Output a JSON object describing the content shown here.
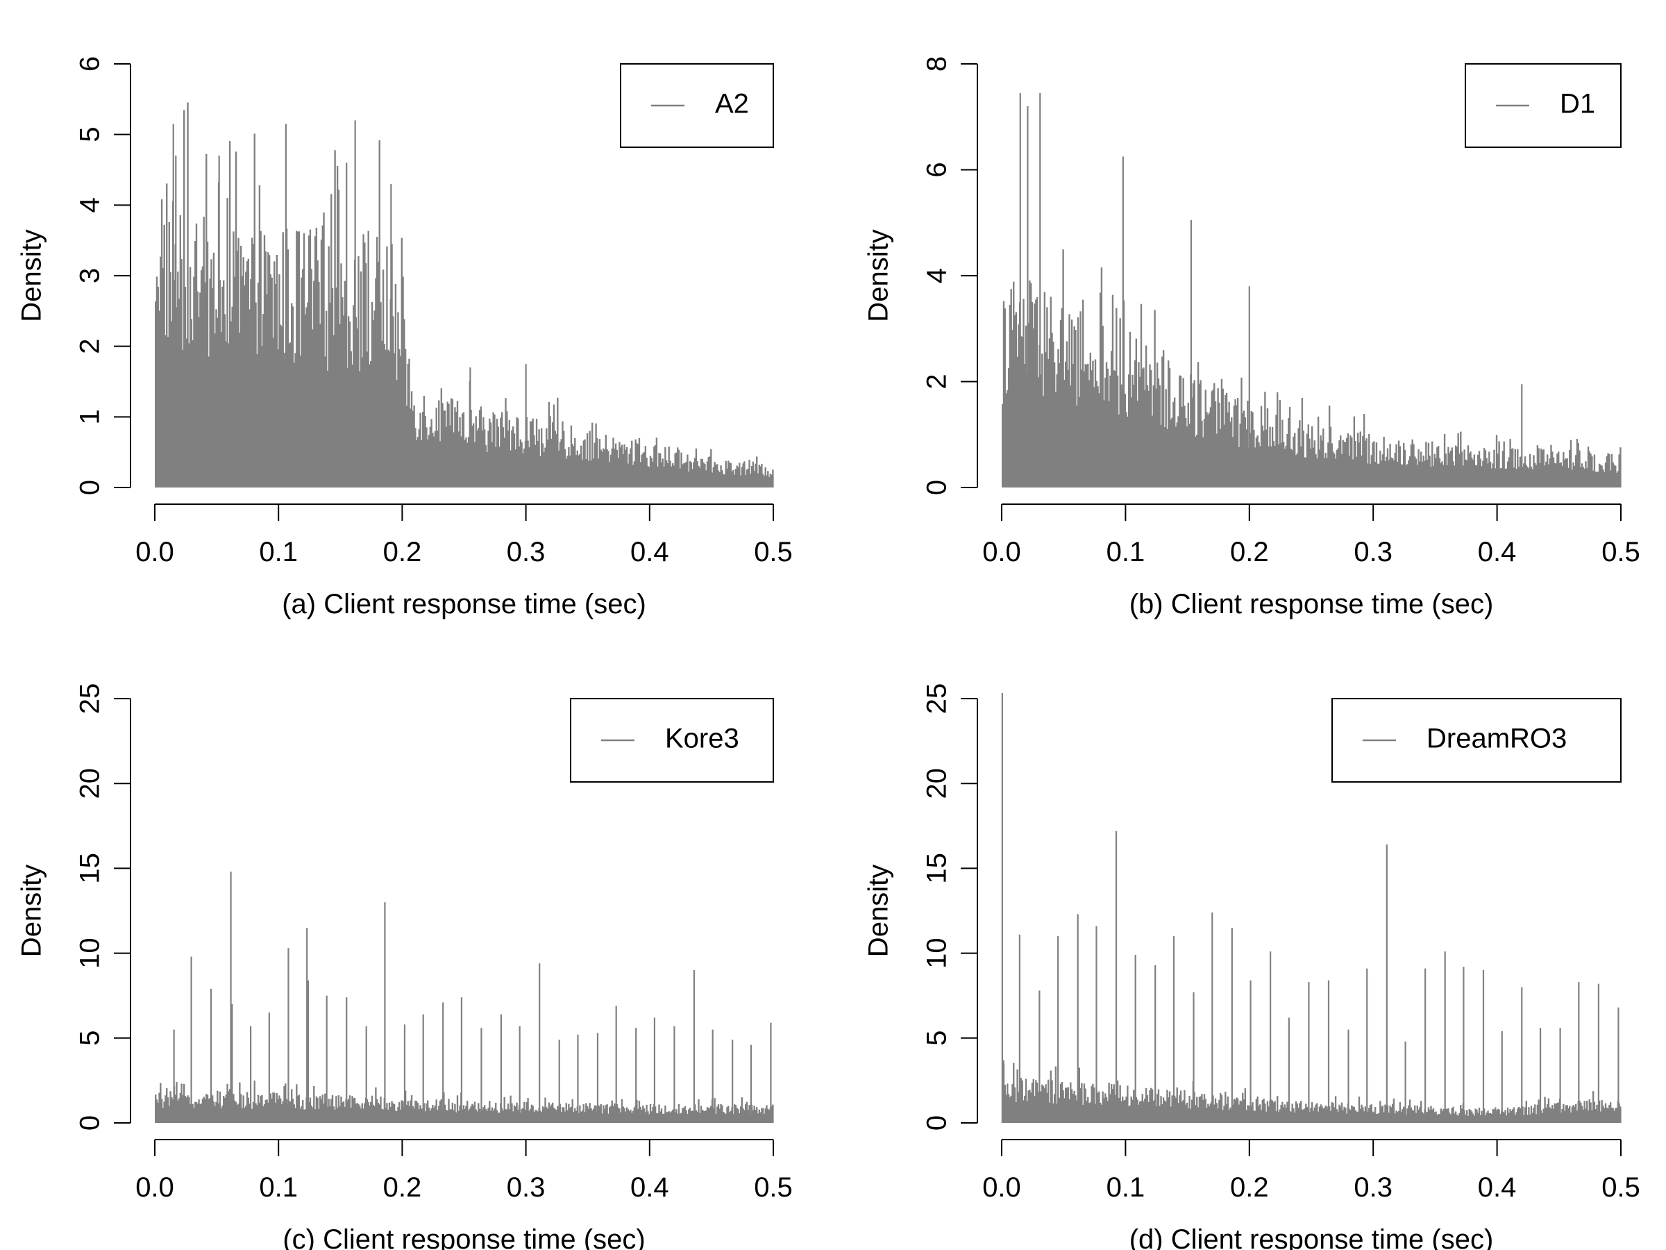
{
  "colors": {
    "bars": "#808080",
    "axis": "#000000",
    "background": "#ffffff"
  },
  "chart_data": [
    {
      "type": "bar",
      "histogram": true,
      "legend": [
        "A2"
      ],
      "legend_position": "top-right",
      "xlabel": "(a) Client response time (sec)",
      "ylabel": "Density",
      "xlim": [
        0,
        0.5
      ],
      "ylim": [
        0,
        6
      ],
      "xticks": [
        "0.0",
        "0.1",
        "0.2",
        "0.3",
        "0.4",
        "0.5"
      ],
      "yticks": [
        "0",
        "1",
        "2",
        "3",
        "4",
        "5",
        "6"
      ],
      "grid": false,
      "bin_width": 0.001,
      "profile_x": [
        0.0,
        0.005,
        0.02,
        0.05,
        0.1,
        0.15,
        0.19,
        0.2,
        0.21,
        0.25,
        0.3,
        0.35,
        0.4,
        0.45,
        0.5
      ],
      "profile_y": [
        3.8,
        3.7,
        3.3,
        3.0,
        3.0,
        3.0,
        2.9,
        2.2,
        1.2,
        0.95,
        0.85,
        0.65,
        0.5,
        0.35,
        0.25
      ],
      "peaks": [
        {
          "x": 0.015,
          "y": 5.15
        },
        {
          "x": 0.017,
          "y": 4.7
        },
        {
          "x": 0.052,
          "y": 4.7
        },
        {
          "x": 0.106,
          "y": 5.15
        },
        {
          "x": 0.155,
          "y": 4.6
        },
        {
          "x": 0.162,
          "y": 5.2
        },
        {
          "x": 0.191,
          "y": 4.3
        },
        {
          "x": 0.255,
          "y": 1.7
        },
        {
          "x": 0.3,
          "y": 1.75
        }
      ]
    },
    {
      "type": "bar",
      "histogram": true,
      "legend": [
        "D1"
      ],
      "legend_position": "top-right",
      "xlabel": "(b) Client response time (sec)",
      "ylabel": "Density",
      "xlim": [
        0,
        0.5
      ],
      "ylim": [
        0,
        8
      ],
      "xticks": [
        "0.0",
        "0.1",
        "0.2",
        "0.3",
        "0.4",
        "0.5"
      ],
      "yticks": [
        "0",
        "2",
        "4",
        "6",
        "8"
      ],
      "grid": false,
      "bin_width": 0.001,
      "profile_x": [
        0.0,
        0.005,
        0.02,
        0.05,
        0.1,
        0.15,
        0.2,
        0.25,
        0.3,
        0.35,
        0.4,
        0.45,
        0.5
      ],
      "profile_y": [
        2.8,
        3.2,
        3.2,
        2.8,
        2.3,
        1.8,
        1.3,
        1.0,
        0.8,
        0.7,
        0.6,
        0.6,
        0.5
      ],
      "peaks": [
        {
          "x": 0.015,
          "y": 7.45
        },
        {
          "x": 0.021,
          "y": 7.2
        },
        {
          "x": 0.031,
          "y": 7.45
        },
        {
          "x": 0.098,
          "y": 6.25
        },
        {
          "x": 0.153,
          "y": 5.05
        },
        {
          "x": 0.2,
          "y": 3.8
        },
        {
          "x": 0.42,
          "y": 1.95
        }
      ]
    },
    {
      "type": "bar",
      "histogram": true,
      "legend": [
        "Kore3"
      ],
      "legend_position": "top-right",
      "xlabel": "(c) Client response time (sec)",
      "ylabel": "Density",
      "xlim": [
        0,
        0.5
      ],
      "ylim": [
        0,
        25
      ],
      "xticks": [
        "0.0",
        "0.1",
        "0.2",
        "0.3",
        "0.4",
        "0.5"
      ],
      "yticks": [
        "0",
        "5",
        "10",
        "15",
        "20",
        "25"
      ],
      "grid": false,
      "bin_width": 0.001,
      "profile_x": [
        0.0,
        0.1,
        0.2,
        0.3,
        0.4,
        0.5
      ],
      "profile_y": [
        1.5,
        1.5,
        1.2,
        1.0,
        0.9,
        0.9
      ],
      "peaks": [
        {
          "x": 0.0155,
          "y": 5.5
        },
        {
          "x": 0.0295,
          "y": 9.8
        },
        {
          "x": 0.0455,
          "y": 7.9
        },
        {
          "x": 0.0615,
          "y": 14.8
        },
        {
          "x": 0.0625,
          "y": 7.0
        },
        {
          "x": 0.0775,
          "y": 5.7
        },
        {
          "x": 0.0925,
          "y": 6.5
        },
        {
          "x": 0.108,
          "y": 10.3
        },
        {
          "x": 0.123,
          "y": 11.5
        },
        {
          "x": 0.124,
          "y": 8.4
        },
        {
          "x": 0.139,
          "y": 7.5
        },
        {
          "x": 0.155,
          "y": 7.4
        },
        {
          "x": 0.171,
          "y": 5.7
        },
        {
          "x": 0.186,
          "y": 13.0
        },
        {
          "x": 0.202,
          "y": 5.8
        },
        {
          "x": 0.217,
          "y": 6.4
        },
        {
          "x": 0.233,
          "y": 7.1
        },
        {
          "x": 0.248,
          "y": 7.4
        },
        {
          "x": 0.264,
          "y": 5.6
        },
        {
          "x": 0.28,
          "y": 6.4
        },
        {
          "x": 0.295,
          "y": 5.7
        },
        {
          "x": 0.311,
          "y": 9.4
        },
        {
          "x": 0.327,
          "y": 4.9
        },
        {
          "x": 0.342,
          "y": 5.2
        },
        {
          "x": 0.358,
          "y": 5.3
        },
        {
          "x": 0.373,
          "y": 6.9
        },
        {
          "x": 0.389,
          "y": 5.6
        },
        {
          "x": 0.404,
          "y": 6.2
        },
        {
          "x": 0.42,
          "y": 5.7
        },
        {
          "x": 0.436,
          "y": 9.0
        },
        {
          "x": 0.451,
          "y": 5.5
        },
        {
          "x": 0.467,
          "y": 4.9
        },
        {
          "x": 0.482,
          "y": 4.6
        },
        {
          "x": 0.498,
          "y": 5.9
        }
      ]
    },
    {
      "type": "bar",
      "histogram": true,
      "legend": [
        "DreamRO3"
      ],
      "legend_position": "top-right",
      "xlabel": "(d) Client response time (sec)",
      "ylabel": "Density",
      "xlim": [
        0,
        0.5
      ],
      "ylim": [
        0,
        25
      ],
      "xticks": [
        "0.0",
        "0.1",
        "0.2",
        "0.3",
        "0.4",
        "0.5"
      ],
      "yticks": [
        "0",
        "5",
        "10",
        "15",
        "20",
        "25"
      ],
      "grid": false,
      "bin_width": 0.001,
      "profile_x": [
        0.0,
        0.1,
        0.2,
        0.3,
        0.4,
        0.5
      ],
      "profile_y": [
        2.2,
        1.8,
        1.2,
        0.9,
        0.7,
        1.3
      ],
      "peaks": [
        {
          "x": 0.0005,
          "y": 26.0
        },
        {
          "x": 0.0015,
          "y": 3.7
        },
        {
          "x": 0.0145,
          "y": 11.1
        },
        {
          "x": 0.0305,
          "y": 7.8
        },
        {
          "x": 0.0455,
          "y": 11.0
        },
        {
          "x": 0.0615,
          "y": 12.3
        },
        {
          "x": 0.0765,
          "y": 11.6
        },
        {
          "x": 0.0925,
          "y": 17.2
        },
        {
          "x": 0.108,
          "y": 9.9
        },
        {
          "x": 0.124,
          "y": 9.3
        },
        {
          "x": 0.139,
          "y": 11.0
        },
        {
          "x": 0.155,
          "y": 7.7
        },
        {
          "x": 0.17,
          "y": 12.4
        },
        {
          "x": 0.186,
          "y": 11.5
        },
        {
          "x": 0.201,
          "y": 8.4
        },
        {
          "x": 0.217,
          "y": 10.1
        },
        {
          "x": 0.232,
          "y": 6.2
        },
        {
          "x": 0.248,
          "y": 8.3
        },
        {
          "x": 0.264,
          "y": 8.4
        },
        {
          "x": 0.28,
          "y": 5.5
        },
        {
          "x": 0.295,
          "y": 9.1
        },
        {
          "x": 0.311,
          "y": 16.4
        },
        {
          "x": 0.326,
          "y": 4.8
        },
        {
          "x": 0.342,
          "y": 9.1
        },
        {
          "x": 0.358,
          "y": 10.1
        },
        {
          "x": 0.373,
          "y": 9.2
        },
        {
          "x": 0.389,
          "y": 9.0
        },
        {
          "x": 0.404,
          "y": 5.4
        },
        {
          "x": 0.42,
          "y": 8.0
        },
        {
          "x": 0.435,
          "y": 5.6
        },
        {
          "x": 0.451,
          "y": 5.6
        },
        {
          "x": 0.466,
          "y": 8.3
        },
        {
          "x": 0.482,
          "y": 8.2
        },
        {
          "x": 0.498,
          "y": 6.8
        }
      ]
    }
  ]
}
